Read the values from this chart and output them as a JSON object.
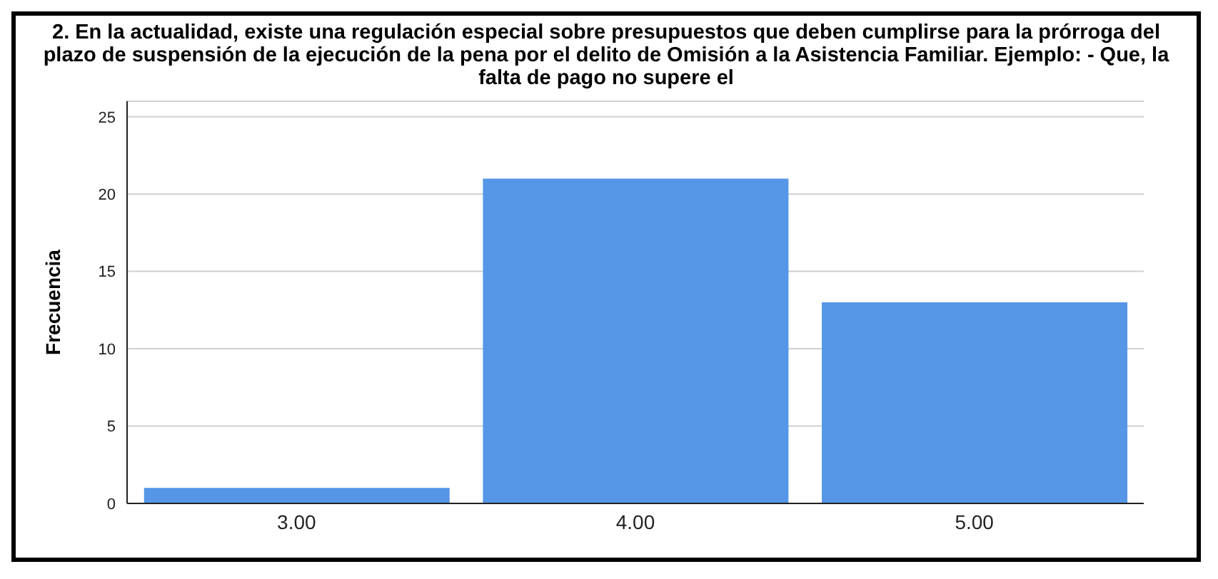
{
  "chart_data": {
    "type": "bar",
    "title": "2. En la actualidad, existe una regulación especial sobre presupuestos que deben cumplirse para la prórroga del plazo de suspensión de la ejecución de la pena por el delito de Omisión a la Asistencia Familiar. Ejemplo: - Que, la falta de pago no supere el",
    "ylabel": "Frecuencia",
    "categories": [
      "3.00",
      "4.00",
      "5.00"
    ],
    "values": [
      1,
      21,
      13
    ],
    "color": "#5596e6",
    "ylim": [
      0,
      26
    ],
    "yticks": [
      0,
      5,
      10,
      15,
      20,
      25
    ],
    "grid": "y"
  }
}
